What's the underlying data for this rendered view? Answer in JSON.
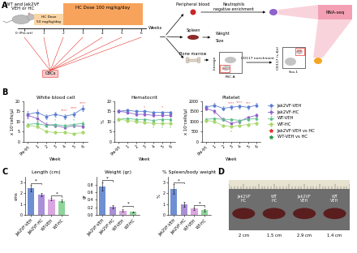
{
  "panel_labels": [
    "A",
    "B",
    "C",
    "D"
  ],
  "diagram": {
    "mouse": [
      "WT and Jak2VF",
      "VEH or HC"
    ],
    "dose_low": [
      "HC Dose",
      "50 mg/kg/day"
    ],
    "dose_high": "HC Dose 100 mg/kg/day",
    "timeline": {
      "label": "Weeks",
      "ticks": [
        "0 (Pre-trt)",
        "1",
        "2",
        "3",
        "4",
        "5",
        "6"
      ]
    },
    "sampling": "CBCs",
    "tissues": [
      "Peripheral blood",
      "Spleen",
      "Bone marrow"
    ],
    "blood_step": [
      "Neutrophils",
      "negative enrichment"
    ],
    "spleen_step": [
      "Weight",
      "Size"
    ],
    "marrow_step": "CD117 enrichment",
    "flow_plots": [
      {
        "y_label": "Lineage",
        "x_label": "FSC-A",
        "gate": "Lin-"
      },
      {
        "y_label": "CD117 (c-Kit)",
        "x_label": "Sca-1",
        "gate": "LSK"
      }
    ],
    "output": "RNA-seq"
  },
  "chart_data": [
    {
      "type": "line",
      "title": "White blood cell",
      "x_label": "Week",
      "y_label": "x 10³cells/µl",
      "categories": [
        "Pre-trt",
        "1",
        "2",
        "3",
        "4",
        "5",
        "6"
      ],
      "ylim": [
        0,
        20
      ],
      "yticks": [
        0,
        5,
        10,
        15,
        20
      ],
      "series": [
        {
          "name": "Jak2VF-VEH",
          "color": "#5b7fd1",
          "marker": "circle",
          "values": [
            13.5,
            14.5,
            12.5,
            13.5,
            12.5,
            13.5,
            16.5
          ],
          "errors": [
            1.5,
            1.5,
            1.2,
            1.3,
            1.2,
            1.2,
            1.5
          ]
        },
        {
          "name": "Jak2VF-HC",
          "color": "#8e63c9",
          "marker": "square",
          "values": [
            13.0,
            11.5,
            8.5,
            8.0,
            7.0,
            8.0,
            7.5
          ],
          "errors": [
            1.4,
            1.2,
            1.0,
            0.9,
            0.8,
            0.9,
            0.8
          ]
        },
        {
          "name": "WT-VEH",
          "color": "#5cbf8a",
          "marker": "triangle",
          "values": [
            8.5,
            9.0,
            8.0,
            8.5,
            8.0,
            8.5,
            9.0
          ],
          "errors": [
            0.8,
            0.8,
            0.7,
            0.8,
            0.7,
            0.8,
            0.8
          ]
        },
        {
          "name": "WT-HC",
          "color": "#a8d86e",
          "marker": "diamond",
          "values": [
            8.0,
            7.5,
            5.0,
            4.5,
            4.5,
            4.0,
            4.5
          ],
          "errors": [
            0.7,
            0.7,
            0.5,
            0.5,
            0.5,
            0.4,
            0.5
          ]
        }
      ],
      "comparisons": [
        {
          "name": "Jak2VF-VEH vs HC",
          "color": "#e8352c",
          "marks": [
            {
              "category": "4",
              "y": 15.5,
              "text": "****"
            },
            {
              "category": "5",
              "y": 16.5,
              "text": "****"
            },
            {
              "category": "6",
              "y": 19,
              "text": "****"
            }
          ]
        },
        {
          "name": "WT-VEH vs HC",
          "color": "#2e9e4a",
          "marks": [
            {
              "category": "3",
              "y": 10.5,
              "text": "*"
            },
            {
              "category": "5",
              "y": 10.5,
              "text": "*"
            }
          ]
        }
      ]
    },
    {
      "type": "line",
      "title": "Hematocrit",
      "x_label": "Week",
      "y_label": "%",
      "categories": [
        "Pre-trt",
        "1",
        "2",
        "3",
        "4",
        "5",
        "6"
      ],
      "ylim": [
        0,
        20
      ],
      "yticks": [
        0,
        5,
        10,
        15,
        20
      ],
      "series": [
        {
          "name": "Jak2VF-VEH",
          "color": "#5b7fd1",
          "marker": "circle",
          "values": [
            15.0,
            15.5,
            15.0,
            15.0,
            14.5,
            14.5,
            14.5
          ],
          "errors": [
            0.8,
            0.8,
            0.7,
            0.7,
            0.7,
            0.7,
            0.7
          ]
        },
        {
          "name": "Jak2VF-HC",
          "color": "#8e63c9",
          "marker": "square",
          "values": [
            15.0,
            14.5,
            13.5,
            13.5,
            13.0,
            13.0,
            13.0
          ],
          "errors": [
            0.8,
            0.7,
            0.7,
            0.7,
            0.6,
            0.6,
            0.6
          ]
        },
        {
          "name": "WT-VEH",
          "color": "#5cbf8a",
          "marker": "triangle",
          "values": [
            11.0,
            11.5,
            11.0,
            11.0,
            10.5,
            11.0,
            11.0
          ],
          "errors": [
            0.6,
            0.6,
            0.6,
            0.6,
            0.6,
            0.6,
            0.6
          ]
        },
        {
          "name": "WT-HC",
          "color": "#a8d86e",
          "marker": "diamond",
          "values": [
            11.0,
            10.5,
            10.0,
            9.5,
            9.0,
            9.0,
            9.0
          ],
          "errors": [
            0.6,
            0.6,
            0.5,
            0.5,
            0.5,
            0.5,
            0.5
          ]
        }
      ],
      "comparisons": [
        {
          "name": "Jak2VF-VEH vs HC",
          "color": "#e8352c",
          "marks": [
            {
              "category": "3",
              "y": 17,
              "text": "*"
            },
            {
              "category": "5",
              "y": 17,
              "text": "*"
            }
          ]
        },
        {
          "name": "WT-VEH vs HC",
          "color": "#2e9e4a",
          "marks": [
            {
              "category": "4",
              "y": 7,
              "text": "*"
            },
            {
              "category": "5",
              "y": 7,
              "text": "*"
            },
            {
              "category": "6",
              "y": 7,
              "text": "*"
            }
          ]
        }
      ]
    },
    {
      "type": "line",
      "title": "Platelet",
      "x_label": "Week",
      "y_label": "x 10³cells/µl",
      "categories": [
        "Pre-trt",
        "1",
        "2",
        "3",
        "4",
        "5",
        "6"
      ],
      "ylim": [
        0,
        2000
      ],
      "yticks": [
        0,
        500,
        1000,
        1500,
        2000
      ],
      "legend": "right",
      "series": [
        {
          "name": "Jak2VF-VEH",
          "color": "#5b7fd1",
          "marker": "circle",
          "values": [
            1700,
            1800,
            1650,
            1700,
            1750,
            1700,
            1800
          ],
          "errors": [
            100,
            100,
            90,
            100,
            100,
            90,
            100
          ]
        },
        {
          "name": "Jak2VF-HC",
          "color": "#8e63c9",
          "marker": "square",
          "values": [
            1650,
            1500,
            1100,
            900,
            1000,
            1200,
            1300
          ],
          "errors": [
            100,
            90,
            80,
            70,
            70,
            80,
            80
          ]
        },
        {
          "name": "WT-VEH",
          "color": "#5cbf8a",
          "marker": "triangle",
          "values": [
            1100,
            1150,
            1100,
            1100,
            1050,
            1100,
            1150
          ],
          "errors": [
            60,
            60,
            60,
            60,
            60,
            60,
            60
          ]
        },
        {
          "name": "WT-HC",
          "color": "#a8d86e",
          "marker": "diamond",
          "values": [
            1050,
            1000,
            800,
            750,
            800,
            850,
            900
          ],
          "errors": [
            60,
            60,
            50,
            50,
            50,
            50,
            50
          ]
        }
      ],
      "comparisons": [
        {
          "name": "Jak2VF-VEH vs HC",
          "color": "#e8352c",
          "marks": [
            {
              "category": "3",
              "y": 1900,
              "text": "****"
            },
            {
              "category": "4",
              "y": 1950,
              "text": "****"
            },
            {
              "category": "5",
              "y": 1900,
              "text": "***"
            }
          ]
        },
        {
          "name": "WT-VEH vs HC",
          "color": "#2e9e4a",
          "marks": [
            {
              "category": "3",
              "y": 500,
              "text": "*"
            }
          ]
        }
      ]
    },
    {
      "type": "bar",
      "title": "Length (cm)",
      "y_label": "cms",
      "categories": [
        "Jak2VF-VEH",
        "Jak2VF-HC",
        "WT-VEH",
        "WT-HC"
      ],
      "values": [
        2.5,
        1.9,
        1.45,
        1.3
      ],
      "errors": [
        0.3,
        0.15,
        0.1,
        0.1
      ],
      "colors": [
        "#6f8fd4",
        "#a98fd8",
        "#d9a6e0",
        "#8fd49a"
      ],
      "ylim": [
        0,
        3.5
      ],
      "yticks": [
        0,
        1,
        2,
        3
      ],
      "significance": [
        {
          "from": "Jak2VF-VEH",
          "to": "Jak2VF-HC",
          "y": 2.95,
          "text": "*"
        },
        {
          "from": "WT-VEH",
          "to": "WT-HC",
          "y": 1.8,
          "text": "*"
        }
      ]
    },
    {
      "type": "bar",
      "title": "Weight (gr)",
      "y_label": "gr",
      "categories": [
        "Jak2VF-VEH",
        "Jak2VF-HC",
        "WT-VEH",
        "WT-HC"
      ],
      "values": [
        0.75,
        0.22,
        0.12,
        0.08
      ],
      "errors": [
        0.1,
        0.05,
        0.03,
        0.02
      ],
      "colors": [
        "#6f8fd4",
        "#a98fd8",
        "#d9a6e0",
        "#8fd49a"
      ],
      "ylim": [
        0,
        1.0
      ],
      "yticks": [
        {
          "value": 0,
          "label": "0.0"
        },
        0.2,
        0.4,
        0.6,
        0.8
      ],
      "significance": [
        {
          "from": "Jak2VF-VEH",
          "to": "Jak2VF-HC",
          "y": 0.92,
          "text": "*"
        },
        {
          "from": "WT-VEH",
          "to": "WT-HC",
          "y": 0.25,
          "text": "*"
        }
      ]
    },
    {
      "type": "bar",
      "title": "% Spleen/body weight",
      "y_label": "%",
      "categories": [
        "Jak2VF-VEH",
        "Jak2VF-HC",
        "WT-VEH",
        "WT-HC"
      ],
      "values": [
        2.4,
        1.0,
        0.6,
        0.45
      ],
      "errors": [
        0.45,
        0.2,
        0.1,
        0.1
      ],
      "colors": [
        "#6f8fd4",
        "#a98fd8",
        "#d9a6e0",
        "#8fd49a"
      ],
      "ylim": [
        0,
        3.5
      ],
      "yticks": [
        0,
        1,
        2,
        3
      ],
      "significance": [
        {
          "from": "Jak2VF-VEH",
          "to": "Jak2VF-HC",
          "y": 3.0,
          "text": "*"
        },
        {
          "from": "WT-VEH",
          "to": "WT-HC",
          "y": 0.9,
          "text": "*"
        }
      ]
    }
  ],
  "photo": {
    "labels": [
      [
        "Jak2VF",
        "HC"
      ],
      [
        "WT",
        "HC"
      ],
      [
        "Jak2VF",
        "VEH"
      ],
      [
        "WT",
        "VEH"
      ]
    ],
    "sizes": [
      "2 cm",
      "1.5 cm",
      "2.9 cm",
      "1.4 cm"
    ]
  }
}
